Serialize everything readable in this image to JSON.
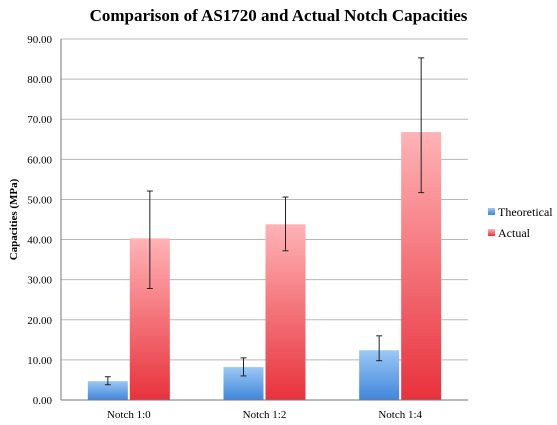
{
  "chart_data": {
    "type": "bar",
    "title": "Comparison of AS1720 and Actual Notch Capacities",
    "xlabel": "",
    "ylabel": "Capacities (MPa)",
    "ylim": [
      0,
      90
    ],
    "yticks": [
      "0.00",
      "10.00",
      "20.00",
      "30.00",
      "40.00",
      "50.00",
      "60.00",
      "70.00",
      "80.00",
      "90.00"
    ],
    "categories": [
      "Notch 1:0",
      "Notch 1:2",
      "Notch 1:4"
    ],
    "series": [
      {
        "name": "Theoretical",
        "color": "#4a90e2",
        "values": [
          4.7,
          8.2,
          12.4
        ],
        "error_low": [
          3.8,
          6.0,
          9.8
        ],
        "error_high": [
          5.8,
          10.5,
          16.0
        ]
      },
      {
        "name": "Actual",
        "color": "#e8323c",
        "values": [
          40.3,
          43.8,
          66.8
        ],
        "error_low": [
          27.8,
          37.2,
          51.7
        ],
        "error_high": [
          52.1,
          50.6,
          85.3
        ]
      }
    ],
    "grid": true,
    "legend_position": "right"
  }
}
